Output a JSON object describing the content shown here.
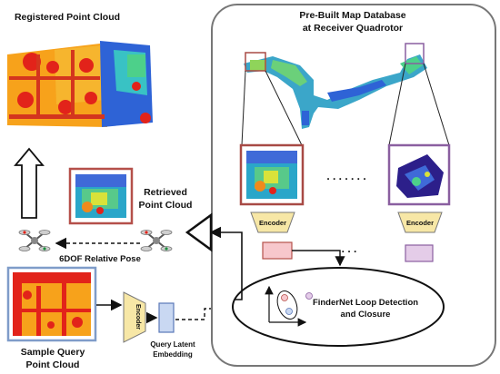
{
  "labels": {
    "registered": "Registered Point Cloud",
    "database_line1": "Pre-Built Map Database",
    "database_line2": "at Receiver Quadrotor",
    "retrieved_line1": "Retrieved",
    "retrieved_line2": "Point Cloud",
    "relative_pose": "6DOF Relative Pose",
    "encoder_db_left": "Encoder",
    "encoder_db_right": "Encoder",
    "encoder_query": "Encoder",
    "query_latent_line1": "Query Latent",
    "query_latent_line2": "Embedding",
    "findernet_line1": "FinderNet Loop Detection",
    "findernet_line2": "and Closure",
    "sample_line1": "Sample Query",
    "sample_line2": "Point Cloud",
    "dots_upper": ". . . . . . .",
    "dots_lower": ". . ."
  },
  "colors": {
    "retrieved_frame": "#b5504a",
    "database_frame_left": "#a84a45",
    "database_frame_right": "#8a5fa0",
    "sample_frame": "#7f9cc9",
    "encoder_fill": "#f7e7a6",
    "latent_pink": "#f7c7cc",
    "latent_purple": "#e4cce8",
    "latent_blue": "#c9d8f2"
  }
}
